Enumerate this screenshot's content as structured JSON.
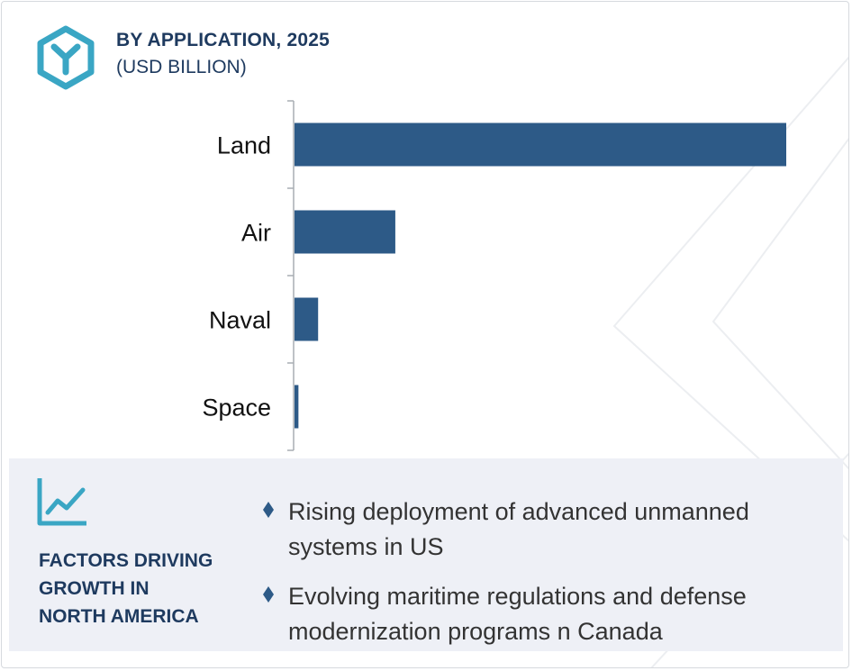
{
  "header": {
    "icon": "hexagon-y-logo-icon",
    "title": "BY APPLICATION, 2025",
    "subtitle": "(USD BILLION)"
  },
  "colors": {
    "bar": "#2d5a87",
    "title": "#1e3a5f",
    "accent": "#3aa6c4",
    "panel_bg": "#eef0f6"
  },
  "chart_data": {
    "type": "bar",
    "orientation": "horizontal",
    "title": "BY APPLICATION, 2025",
    "subtitle": "(USD BILLION)",
    "categories": [
      "Land",
      "Air",
      "Naval",
      "Space"
    ],
    "values": [
      100,
      20.5,
      4.8,
      0.8
    ],
    "value_axis_shown": false,
    "grid": false,
    "legend": "none"
  },
  "factors": {
    "icon": "line-chart-icon",
    "title_lines": [
      "FACTORS DRIVING",
      "GROWTH IN",
      "NORTH AMERICA"
    ],
    "bullet_icon": "diamond-bullet-icon",
    "items": [
      "Rising deployment of advanced unmanned systems in US",
      "Evolving maritime regulations and defense modernization programs n Canada"
    ]
  }
}
